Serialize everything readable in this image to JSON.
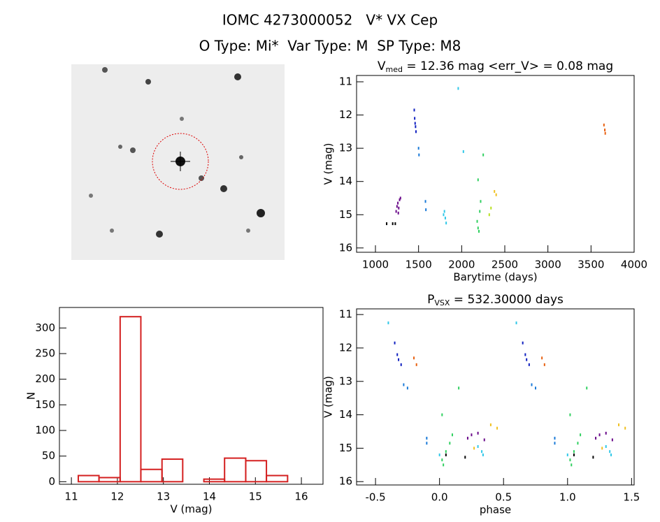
{
  "header": {
    "title": "IOMC 4273000052   V* VX Cep",
    "subtitle": "O Type: Mi*  Var Type: M  SP Type: M8"
  },
  "chart_data": [
    {
      "type": "scatter",
      "title": {
        "main": "V",
        "sub": "med",
        "rest": " = 12.36 mag <err_V> = 0.08 mag"
      },
      "x_label": "Barytime (days)",
      "y_label": "V (mag)",
      "xlim": [
        781,
        4000
      ],
      "ylim": [
        16.13,
        10.81
      ],
      "xticks": [
        1000,
        1500,
        2000,
        2500,
        3000,
        3500,
        4000
      ],
      "yticks": [
        11,
        12,
        13,
        14,
        15,
        16
      ],
      "series": [
        {
          "color": "#000000",
          "x": [
            1130,
            1200,
            1230
          ],
          "y": [
            15.27,
            15.27,
            15.27
          ]
        },
        {
          "color": "#6a0a8a",
          "x": [
            1240,
            1250,
            1260,
            1270,
            1280,
            1290,
            1265
          ],
          "y": [
            14.9,
            14.75,
            14.65,
            14.8,
            14.55,
            14.5,
            14.95
          ]
        },
        {
          "color": "#1020c0",
          "x": [
            1450,
            1455,
            1460,
            1465,
            1470
          ],
          "y": [
            11.85,
            12.1,
            12.25,
            12.35,
            12.5
          ]
        },
        {
          "color": "#1a7ad8",
          "x": [
            1500,
            1505,
            1580,
            1585
          ],
          "y": [
            13.0,
            13.2,
            14.6,
            14.85
          ]
        },
        {
          "color": "#30c8e8",
          "x": [
            1960,
            1790,
            1800,
            1810,
            1820,
            2020
          ],
          "y": [
            11.2,
            15.0,
            14.9,
            15.1,
            15.25,
            13.1
          ]
        },
        {
          "color": "#30d060",
          "x": [
            2180,
            2190,
            2200,
            2210,
            2220,
            2190,
            2250
          ],
          "y": [
            15.2,
            15.4,
            15.5,
            14.9,
            14.6,
            13.95,
            13.2
          ]
        },
        {
          "color": "#b8e020",
          "x": [
            2320,
            2340
          ],
          "y": [
            15.0,
            14.8
          ]
        },
        {
          "color": "#f0c020",
          "x": [
            2380,
            2400
          ],
          "y": [
            14.3,
            14.4
          ]
        },
        {
          "color": "#e86010",
          "x": [
            3650,
            3660,
            3665
          ],
          "y": [
            12.3,
            12.45,
            12.55
          ]
        }
      ]
    },
    {
      "type": "histogram",
      "x_label": "V (mag)",
      "y_label": "N",
      "color": "#d42020",
      "bins": [
        11.15,
        11.6,
        12.06,
        12.51,
        12.97,
        13.42,
        13.88,
        14.33,
        14.79,
        15.24,
        15.7
      ],
      "counts": [
        12,
        8,
        322,
        24,
        44,
        0,
        5,
        46,
        41,
        12
      ],
      "xlim": [
        10.74,
        16.47
      ],
      "ylim": [
        -5,
        340
      ],
      "xticks": [
        11,
        12,
        13,
        14,
        15,
        16
      ],
      "yticks": [
        0,
        50,
        100,
        150,
        200,
        250,
        300
      ]
    },
    {
      "type": "scatter",
      "title": {
        "main": "P",
        "sub": "VSX",
        "rest": " = 532.30000 days"
      },
      "x_label": "phase",
      "y_label": "V (mag)",
      "xlim": [
        -0.648,
        1.52
      ],
      "ylim": [
        16.1,
        10.83
      ],
      "xticks": [
        -0.5,
        {
          "value": 0,
          "label": "0.0"
        },
        0.5,
        {
          "value": 1,
          "label": "1.0"
        },
        1.5
      ],
      "yticks": [
        11,
        12,
        13,
        14,
        15,
        16
      ],
      "series": [
        {
          "color": "#000000",
          "x": [
            0.05,
            0.2,
            1.05,
            1.2
          ],
          "y": [
            15.2,
            15.27,
            15.2,
            15.27
          ]
        },
        {
          "color": "#6a0a8a",
          "x": [
            0.22,
            0.25,
            0.3,
            0.35,
            1.22,
            1.25,
            1.3,
            1.35
          ],
          "y": [
            14.7,
            14.6,
            14.55,
            14.75,
            14.7,
            14.6,
            14.55,
            14.75
          ]
        },
        {
          "color": "#1020c0",
          "x": [
            -0.35,
            -0.33,
            -0.32,
            -0.3,
            0.65,
            0.67,
            0.68,
            0.7
          ],
          "y": [
            11.85,
            12.2,
            12.35,
            12.5,
            11.85,
            12.2,
            12.35,
            12.5
          ]
        },
        {
          "color": "#1a7ad8",
          "x": [
            -0.28,
            -0.25,
            -0.1,
            -0.1,
            0.72,
            0.75,
            0.9,
            0.9
          ],
          "y": [
            13.1,
            13.2,
            14.7,
            14.85,
            13.1,
            13.2,
            14.7,
            14.85
          ]
        },
        {
          "color": "#30c8e8",
          "x": [
            -0.4,
            0.33,
            0.34,
            0.3,
            0.0,
            0.6,
            1.33,
            1.34,
            1.3,
            1.0
          ],
          "y": [
            11.25,
            15.1,
            15.2,
            14.95,
            15.2,
            11.25,
            15.1,
            15.2,
            14.95,
            15.2
          ]
        },
        {
          "color": "#30d060",
          "x": [
            0.02,
            0.03,
            0.05,
            0.08,
            0.1,
            0.02,
            0.15,
            1.02,
            1.03,
            1.05,
            1.08,
            1.1,
            1.02,
            1.15
          ],
          "y": [
            15.35,
            15.5,
            15.1,
            14.85,
            14.6,
            14.0,
            13.2,
            15.35,
            15.5,
            15.1,
            14.85,
            14.6,
            14.0,
            13.2
          ]
        },
        {
          "color": "#f0c020",
          "x": [
            0.27,
            0.4,
            0.45,
            1.27,
            1.4,
            1.45
          ],
          "y": [
            15.0,
            14.3,
            14.4,
            15.0,
            14.3,
            14.4
          ]
        },
        {
          "color": "#e86010",
          "x": [
            -0.2,
            -0.18,
            0.8,
            0.82
          ],
          "y": [
            12.3,
            12.5,
            12.3,
            12.5
          ]
        }
      ]
    }
  ]
}
